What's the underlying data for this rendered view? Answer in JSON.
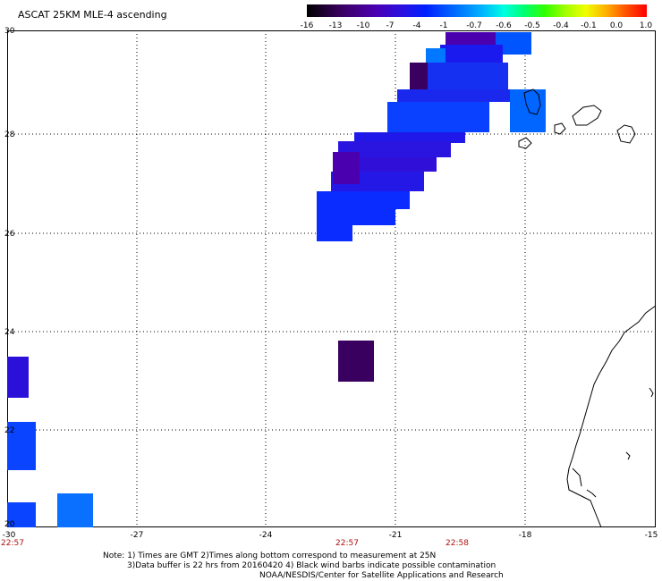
{
  "title": "ASCAT 25KM MLE-4 ascending",
  "colorbar": {
    "labels": [
      "-16",
      "-13",
      "-10",
      "-7",
      "-4",
      "-1",
      "-0.7",
      "-0.6",
      "-0.5",
      "-0.4",
      "-0.1",
      "0.0",
      "1.0"
    ]
  },
  "axes": {
    "x_ticks": [
      "-30",
      "-27",
      "-24",
      "-21",
      "-18",
      "-15"
    ],
    "y_ticks": [
      "30",
      "28",
      "26",
      "24",
      "22",
      "20"
    ]
  },
  "times": [
    "22:57",
    "22:57",
    "22:58"
  ],
  "notes": {
    "line1": "Note: 1) Times are GMT 2)Times along bottom correspond to measurement at 25N",
    "line2": "3)Data buffer is 22 hrs from 20160420 4) Black wind barbs indicate possible contamination",
    "line3": "NOAA/NESDIS/Center for Satellite Applications and Research"
  },
  "colors": {
    "dark_purple": "#3a0060",
    "purple": "#4b00b0",
    "blue": "#0020ff",
    "light_blue": "#0078ff"
  }
}
